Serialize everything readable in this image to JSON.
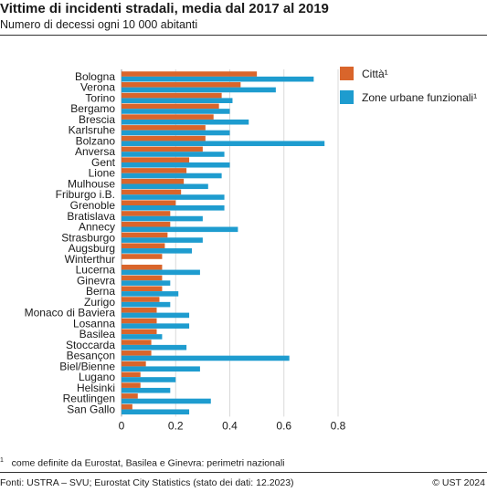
{
  "header": {
    "title": "Vittime di incidenti stradali, media dal 2017 al 2019",
    "subtitle": "Numero di decessi ogni 10 000 abitanti"
  },
  "footnote": {
    "marker": "1",
    "text": "come definite da Eurostat, Basilea e Ginevra: perimetri nazionali"
  },
  "footer": {
    "source": "Fonti: USTRA – SVU; Eurostat City Statistics (stato dei dati: 12.2023)",
    "copyright": "© UST 2024"
  },
  "chart_data": {
    "type": "bar",
    "orientation": "horizontal",
    "categories": [
      "Bologna",
      "Verona",
      "Torino",
      "Bergamo",
      "Brescia",
      "Karlsruhe",
      "Bolzano",
      "Anversa",
      "Gent",
      "Lione",
      "Mulhouse",
      "Friburgo i.B.",
      "Grenoble",
      "Bratislava",
      "Annecy",
      "Strasburgo",
      "Augsburg",
      "Winterthur",
      "Lucerna",
      "Ginevra",
      "Berna",
      "Zurigo",
      "Monaco di Baviera",
      "Losanna",
      "Basilea",
      "Stoccarda",
      "Besançon",
      "Biel/Bienne",
      "Lugano",
      "Helsinki",
      "Reutlingen",
      "San Gallo"
    ],
    "series": [
      {
        "name": "Città¹",
        "color": "#d9652b",
        "values": [
          0.5,
          0.44,
          0.37,
          0.36,
          0.34,
          0.31,
          0.31,
          0.3,
          0.25,
          0.24,
          0.23,
          0.22,
          0.2,
          0.18,
          0.18,
          0.17,
          0.16,
          0.15,
          0.15,
          0.15,
          0.15,
          0.14,
          0.13,
          0.13,
          0.13,
          0.11,
          0.11,
          0.09,
          0.07,
          0.07,
          0.06,
          0.04
        ]
      },
      {
        "name": "Zone urbane funzionali¹",
        "color": "#1e9ccf",
        "values": [
          0.71,
          0.57,
          0.41,
          0.4,
          0.47,
          0.4,
          0.75,
          0.38,
          0.4,
          0.37,
          0.32,
          0.38,
          0.38,
          0.3,
          0.43,
          0.3,
          0.26,
          null,
          0.29,
          0.18,
          0.21,
          0.18,
          0.25,
          0.25,
          0.15,
          0.24,
          0.62,
          0.29,
          0.2,
          0.18,
          0.33,
          0.25
        ]
      }
    ],
    "xlim": [
      0,
      0.8
    ],
    "xticks": [
      "0",
      "0.2",
      "0.4",
      "0.6",
      "0.8"
    ],
    "xticks_values": [
      0,
      0.2,
      0.4,
      0.6,
      0.8
    ],
    "grid": true,
    "legend_position": "right"
  }
}
